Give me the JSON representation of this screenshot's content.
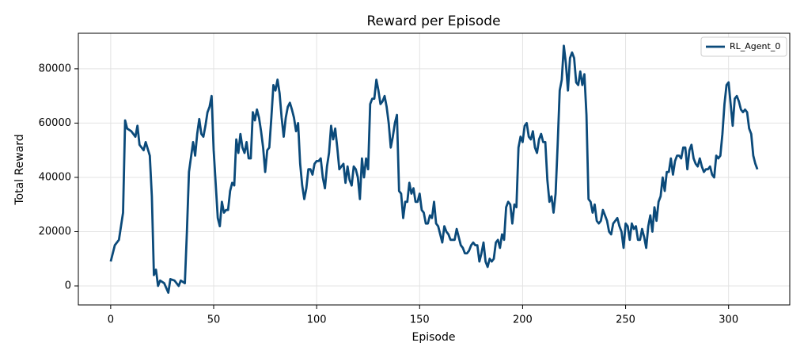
{
  "chart_data": {
    "type": "line",
    "title": "Reward per Episode",
    "x_label": "Episode",
    "y_label": "Total Reward",
    "x": [
      0,
      2,
      4,
      6,
      7,
      8,
      10,
      12,
      13,
      14,
      16,
      17,
      19,
      20,
      21,
      22,
      23,
      24,
      26,
      28,
      29,
      31,
      33,
      34,
      36,
      37,
      38,
      40,
      41,
      42,
      43,
      44,
      45,
      46,
      47,
      48,
      49,
      50,
      52,
      53,
      54,
      55,
      56,
      57,
      58,
      59,
      60,
      61,
      62,
      63,
      64,
      65,
      66,
      67,
      68,
      69,
      70,
      71,
      72,
      73,
      74,
      75,
      76,
      77,
      78,
      79,
      80,
      81,
      82,
      83,
      84,
      85,
      86,
      87,
      88,
      89,
      90,
      91,
      92,
      93,
      94,
      95,
      96,
      97,
      98,
      99,
      100,
      101,
      102,
      103,
      104,
      105,
      106,
      107,
      108,
      109,
      110,
      111,
      112,
      113,
      114,
      115,
      116,
      117,
      118,
      119,
      120,
      121,
      122,
      123,
      124,
      125,
      126,
      127,
      128,
      129,
      130,
      131,
      132,
      133,
      134,
      135,
      136,
      137,
      138,
      139,
      140,
      141,
      142,
      143,
      144,
      145,
      146,
      147,
      148,
      149,
      150,
      151,
      152,
      153,
      154,
      155,
      156,
      157,
      158,
      159,
      160,
      161,
      162,
      163,
      164,
      165,
      166,
      167,
      168,
      169,
      170,
      171,
      172,
      173,
      174,
      175,
      176,
      177,
      178,
      179,
      180,
      181,
      182,
      183,
      184,
      185,
      186,
      187,
      188,
      189,
      190,
      191,
      192,
      193,
      194,
      195,
      196,
      197,
      198,
      199,
      200,
      201,
      202,
      203,
      204,
      205,
      206,
      207,
      208,
      209,
      210,
      211,
      212,
      213,
      214,
      215,
      216,
      217,
      218,
      219,
      220,
      221,
      222,
      223,
      224,
      225,
      226,
      227,
      228,
      229,
      230,
      231,
      232,
      233,
      234,
      235,
      236,
      237,
      238,
      239,
      240,
      241,
      242,
      243,
      244,
      245,
      246,
      247,
      248,
      249,
      250,
      251,
      252,
      253,
      254,
      255,
      256,
      257,
      258,
      259,
      260,
      261,
      262,
      263,
      264,
      265,
      266,
      267,
      268,
      269,
      270,
      271,
      272,
      273,
      274,
      275,
      276,
      277,
      278,
      279,
      280,
      281,
      282,
      283,
      284,
      285,
      286,
      287,
      288,
      289,
      290,
      291,
      292,
      293,
      294,
      295,
      296,
      297,
      298,
      299,
      300,
      301,
      302,
      303,
      304,
      305,
      306,
      307,
      308,
      309,
      310,
      311,
      312,
      313,
      314
    ],
    "series": [
      {
        "name": "RL_Agent_0",
        "color": "#0b4a7a",
        "values": [
          9000,
          15000,
          17000,
          27000,
          61000,
          58000,
          57000,
          55000,
          59000,
          52000,
          50000,
          53000,
          48000,
          33000,
          4000,
          6000,
          0,
          2000,
          1000,
          -2500,
          2500,
          2000,
          0,
          2000,
          1000,
          20000,
          42000,
          53000,
          48000,
          56000,
          61500,
          56000,
          55000,
          59000,
          64000,
          66000,
          70000,
          50000,
          25000,
          22000,
          31000,
          27000,
          28000,
          28000,
          35000,
          38000,
          37000,
          54000,
          49000,
          56000,
          51000,
          49000,
          53000,
          47000,
          47000,
          64000,
          61000,
          65000,
          62000,
          57000,
          51000,
          42000,
          50000,
          51000,
          62000,
          74000,
          72000,
          76000,
          71000,
          62000,
          55000,
          62000,
          66000,
          67500,
          65000,
          62000,
          57000,
          60000,
          45000,
          37000,
          32000,
          36000,
          43000,
          43000,
          41000,
          45000,
          46000,
          46000,
          47000,
          40000,
          36000,
          44000,
          49000,
          59000,
          54000,
          58000,
          51000,
          43000,
          44000,
          45000,
          38000,
          44000,
          39000,
          37000,
          44000,
          43000,
          40000,
          32000,
          47000,
          40000,
          47000,
          43000,
          67000,
          69000,
          69000,
          76000,
          72000,
          67000,
          68000,
          70000,
          66000,
          60000,
          51000,
          55000,
          60000,
          63000,
          35000,
          34000,
          25000,
          31000,
          31000,
          38000,
          34000,
          36000,
          31000,
          31000,
          34000,
          28000,
          27000,
          23000,
          23000,
          26000,
          25000,
          31000,
          23000,
          22000,
          19000,
          16000,
          22000,
          20000,
          19000,
          17000,
          17000,
          17000,
          21000,
          18000,
          15000,
          14000,
          12000,
          12000,
          13000,
          15000,
          16000,
          15000,
          15000,
          9000,
          12000,
          16000,
          9000,
          7000,
          10000,
          9000,
          10000,
          16000,
          17000,
          14000,
          19000,
          17000,
          29000,
          31000,
          30000,
          23000,
          30000,
          29000,
          51000,
          55000,
          53000,
          59000,
          60000,
          55000,
          54000,
          57000,
          51000,
          49000,
          54000,
          56000,
          53000,
          53000,
          39000,
          31000,
          33000,
          27000,
          34000,
          52000,
          72000,
          76000,
          88500,
          82000,
          72000,
          84000,
          86000,
          84000,
          75000,
          74000,
          79000,
          74000,
          78000,
          63000,
          32000,
          31000,
          27000,
          30000,
          24000,
          23000,
          24000,
          28000,
          26000,
          24000,
          20000,
          19000,
          23000,
          24000,
          25000,
          22000,
          20000,
          14000,
          23000,
          22000,
          17000,
          23000,
          21000,
          22000,
          17000,
          17000,
          21000,
          18000,
          14000,
          22000,
          26000,
          20000,
          29000,
          24000,
          31000,
          33000,
          40000,
          35000,
          42000,
          42000,
          47000,
          41000,
          46000,
          48000,
          48000,
          47000,
          51000,
          51000,
          43000,
          50000,
          52000,
          47000,
          45000,
          44000,
          47000,
          44000,
          42000,
          43000,
          43000,
          44000,
          41000,
          40000,
          48000,
          47000,
          48000,
          56000,
          67000,
          74000,
          75000,
          67000,
          59000,
          69000,
          70000,
          68000,
          65000,
          64000,
          65000,
          64000,
          58000,
          56000,
          48000,
          45000,
          43000
        ]
      }
    ],
    "xlim": [
      -15.7,
      329.7
    ],
    "ylim": [
      -7000,
      93100
    ],
    "xticks": [
      0,
      50,
      100,
      150,
      200,
      250,
      300
    ],
    "yticks": [
      0,
      20000,
      40000,
      60000,
      80000
    ],
    "grid": true,
    "legend": "upper right"
  }
}
